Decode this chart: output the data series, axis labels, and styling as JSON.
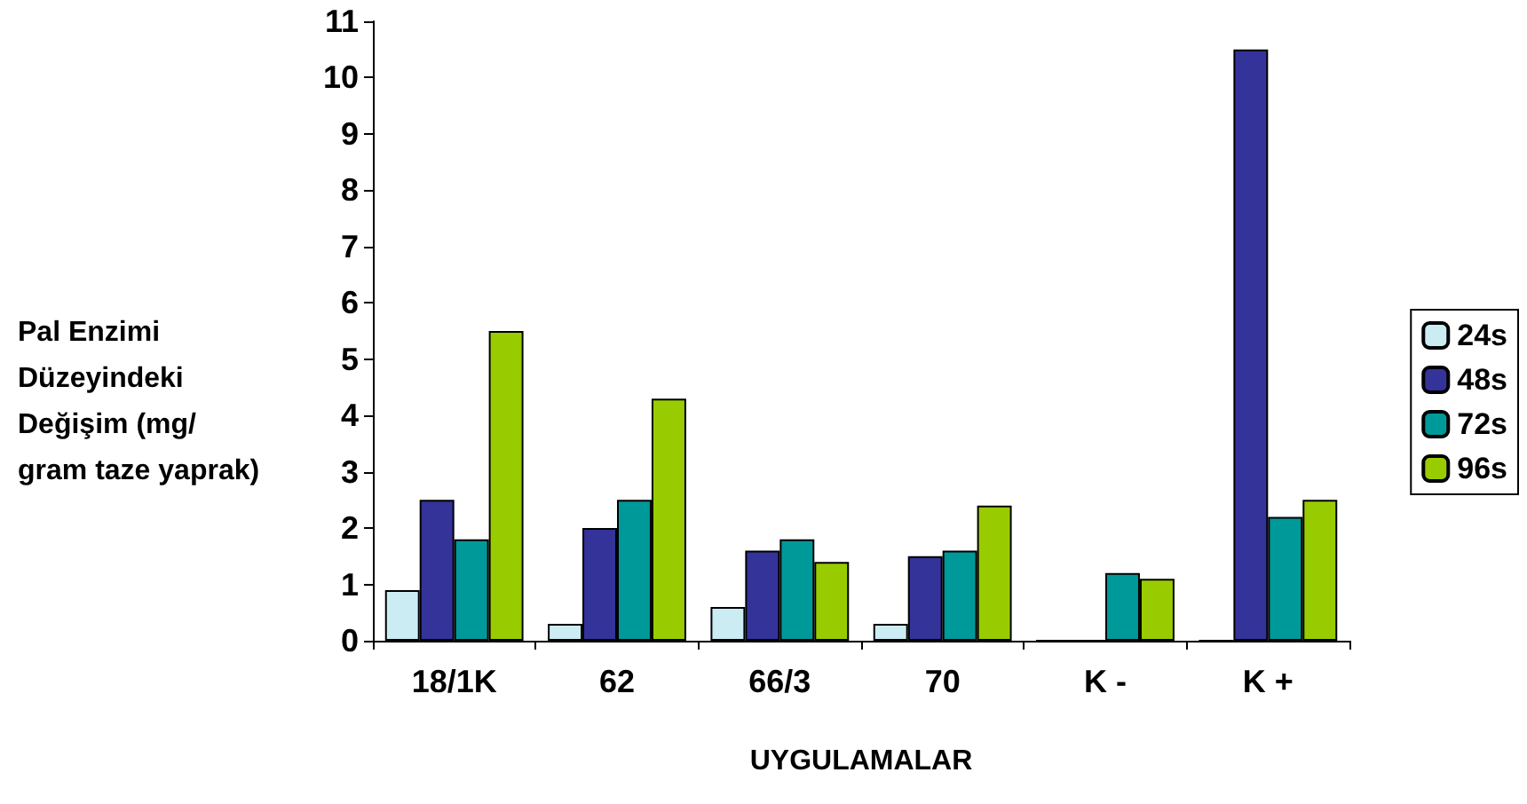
{
  "chart_data": {
    "type": "bar",
    "xlabel": "UYGULAMALAR",
    "ylabel": "Pal Enzimi Düzeyindeki Değişim (mg/gram taze yaprak)",
    "categories": [
      "18/1K",
      "62",
      "66/3",
      "70",
      "K -",
      "K +"
    ],
    "series": [
      {
        "name": "24s",
        "color": "#ccecf4",
        "values": [
          0.9,
          0.3,
          0.6,
          0.3,
          0,
          0
        ]
      },
      {
        "name": "48s",
        "color": "#333399",
        "values": [
          2.5,
          2.0,
          1.6,
          1.5,
          0,
          10.5
        ]
      },
      {
        "name": "72s",
        "color": "#009999",
        "values": [
          1.8,
          2.5,
          1.8,
          1.6,
          1.2,
          2.2
        ]
      },
      {
        "name": "96s",
        "color": "#99cc00",
        "values": [
          5.5,
          4.3,
          1.4,
          2.4,
          1.1,
          2.5
        ]
      }
    ],
    "ylim": [
      0,
      11
    ],
    "yticks": [
      0,
      1,
      2,
      3,
      4,
      5,
      6,
      7,
      8,
      9,
      10,
      11
    ],
    "grid": false,
    "legend": "right"
  }
}
